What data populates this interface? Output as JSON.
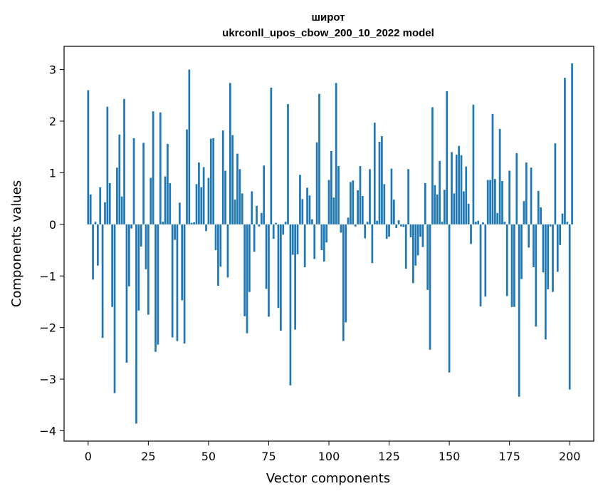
{
  "chart_data": {
    "type": "bar",
    "title_line1": "широт",
    "title_line2": "ukrconll_upos_cbow_200_10_2022 model",
    "xlabel": "Vector components",
    "ylabel": "Components values",
    "xlim": [
      -10,
      210
    ],
    "ylim": [
      -4.2,
      3.45
    ],
    "xticks": [
      0,
      25,
      50,
      75,
      100,
      125,
      150,
      175,
      200
    ],
    "yticks": [
      -4,
      -3,
      -2,
      -1,
      0,
      1,
      2,
      3
    ],
    "xtick_labels": [
      "0",
      "25",
      "50",
      "75",
      "100",
      "125",
      "150",
      "175",
      "200"
    ],
    "ytick_labels": [
      "−4",
      "−3",
      "−2",
      "−1",
      "0",
      "1",
      "2",
      "3"
    ],
    "bar_color": "#1f77b4",
    "grid": false,
    "values": [
      2.6,
      0.58,
      -1.07,
      0.05,
      -0.8,
      0.72,
      -2.2,
      0.43,
      2.28,
      0.8,
      -1.6,
      -3.27,
      1.1,
      1.74,
      0.54,
      2.43,
      -2.68,
      -1.2,
      -0.08,
      1.67,
      -3.86,
      -1.67,
      -0.43,
      1.58,
      -0.87,
      -1.75,
      0.9,
      2.19,
      -2.47,
      -2.33,
      2.17,
      0.05,
      0.93,
      1.56,
      0.8,
      -2.19,
      -0.3,
      -2.26,
      0.42,
      -1.47,
      -2.31,
      1.84,
      3.0,
      0.03,
      0.04,
      0.78,
      1.2,
      0.72,
      1.11,
      -0.13,
      0.9,
      1.66,
      1.67,
      -0.5,
      -1.19,
      -0.82,
      1.82,
      1.04,
      -1.03,
      2.74,
      1.73,
      0.48,
      1.37,
      1.07,
      0.6,
      -1.78,
      -2.11,
      -1.31,
      0.64,
      -0.53,
      0.36,
      -0.04,
      0.22,
      1.14,
      -1.25,
      -1.79,
      2.65,
      -0.28,
      0.03,
      -1.62,
      -2.06,
      -0.2,
      0.05,
      2.33,
      -3.12,
      -0.59,
      -2.04,
      -0.58,
      0.96,
      0.49,
      -0.83,
      0.71,
      0.56,
      0.1,
      -0.67,
      1.59,
      2.53,
      -0.5,
      -0.72,
      -0.35,
      0.86,
      1.42,
      0.52,
      2.74,
      1.13,
      -0.16,
      -2.26,
      -1.9,
      0.13,
      0.82,
      0.85,
      -0.04,
      0.66,
      1.13,
      0.55,
      -0.27,
      0.05,
      1.07,
      -0.75,
      1.97,
      0.07,
      1.6,
      1.71,
      0.78,
      -0.28,
      -0.24,
      1.08,
      0.48,
      -0.07,
      0.08,
      -0.04,
      -0.05,
      -0.86,
      1.07,
      -0.25,
      -1.14,
      -0.8,
      -0.6,
      -0.24,
      -0.44,
      0.8,
      -1.27,
      -2.43,
      2.27,
      0.76,
      0.58,
      1.23,
      0.05,
      0.67,
      2.58,
      -2.87,
      1.4,
      0.6,
      1.35,
      1.52,
      1.34,
      0.64,
      1.12,
      0.4,
      -0.38,
      2.32,
      0.05,
      0.07,
      -1.59,
      0.04,
      -1.4,
      0.86,
      0.86,
      2.14,
      0.88,
      0.22,
      1.85,
      0.84,
      0.05,
      -1.39,
      1.04,
      -1.6,
      -1.6,
      1.38,
      -3.34,
      -1.06,
      0.45,
      1.2,
      -0.45,
      1.1,
      -0.83,
      -1.98,
      0.65,
      0.33,
      -0.93,
      -2.23,
      -1.26,
      -0.04,
      -1.31,
      1.57,
      -0.92,
      -0.4,
      0.21,
      2.84,
      0.05,
      -3.2,
      3.12
    ]
  }
}
